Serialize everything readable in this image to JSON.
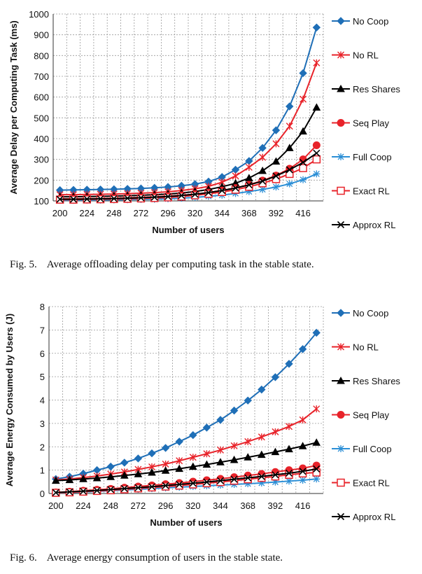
{
  "figures": [
    {
      "caption_label": "Fig. 5.",
      "caption_text": "Average offloading delay per computing task in the stable state."
    },
    {
      "caption_label": "Fig. 6.",
      "caption_text": "Average energy consumption of users in the stable state."
    }
  ],
  "chart_data": [
    {
      "type": "line",
      "title": "",
      "xlabel": "Number of users",
      "ylabel": "Average Delay per Computing Task (ms)",
      "ylim": [
        100,
        1000
      ],
      "yticks": [
        100,
        200,
        300,
        400,
        500,
        600,
        700,
        800,
        900,
        1000
      ],
      "x": [
        200,
        212,
        224,
        236,
        248,
        260,
        272,
        284,
        296,
        308,
        320,
        332,
        344,
        356,
        368,
        380,
        392,
        404,
        416,
        428
      ],
      "xtick_labels": [
        "200",
        "224",
        "248",
        "272",
        "296",
        "320",
        "344",
        "368",
        "392",
        "416"
      ],
      "grid": true,
      "legend": "right",
      "series": [
        {
          "name": "No Coop",
          "color": "#1f6fb7",
          "marker": "diamond",
          "values": [
            152,
            153,
            154,
            155,
            156,
            158,
            160,
            163,
            167,
            173,
            181,
            193,
            215,
            250,
            292,
            355,
            440,
            555,
            715,
            935
          ]
        },
        {
          "name": "No RL",
          "color": "#e8232a",
          "marker": "star",
          "values": [
            130,
            130,
            131,
            132,
            133,
            135,
            137,
            140,
            144,
            150,
            158,
            170,
            190,
            220,
            262,
            310,
            375,
            460,
            590,
            765
          ]
        },
        {
          "name": "Res Shares",
          "color": "#000000",
          "marker": "triangle",
          "values": [
            120,
            120,
            121,
            122,
            123,
            125,
            127,
            130,
            133,
            138,
            145,
            155,
            168,
            185,
            210,
            245,
            290,
            355,
            435,
            550
          ]
        },
        {
          "name": "Seq Play",
          "color": "#e8232a",
          "marker": "circle",
          "values": [
            110,
            110,
            111,
            112,
            113,
            115,
            117,
            120,
            123,
            127,
            133,
            140,
            150,
            162,
            178,
            198,
            222,
            255,
            300,
            368
          ]
        },
        {
          "name": "Full Coop",
          "color": "#2c8fd6",
          "marker": "asterisk",
          "values": [
            103,
            103,
            104,
            104,
            105,
            106,
            107,
            108,
            110,
            113,
            117,
            122,
            128,
            136,
            145,
            155,
            167,
            182,
            202,
            230
          ]
        },
        {
          "name": "Exact RL",
          "color": "#e8232a",
          "marker": "square-open",
          "values": [
            106,
            106,
            107,
            108,
            109,
            110,
            112,
            114,
            117,
            121,
            127,
            134,
            143,
            154,
            168,
            185,
            205,
            230,
            258,
            300
          ]
        },
        {
          "name": "Approx RL",
          "color": "#000000",
          "marker": "x",
          "values": [
            108,
            108,
            109,
            110,
            111,
            113,
            115,
            118,
            121,
            126,
            132,
            140,
            150,
            162,
            177,
            195,
            220,
            250,
            285,
            330
          ]
        }
      ]
    },
    {
      "type": "line",
      "title": "",
      "xlabel": "Number of users",
      "ylabel": "Average Energy Consumed by Users (J)",
      "ylim": [
        0,
        8
      ],
      "yticks": [
        0,
        1,
        2,
        3,
        4,
        5,
        6,
        7,
        8
      ],
      "x": [
        200,
        212,
        224,
        236,
        248,
        260,
        272,
        284,
        296,
        308,
        320,
        332,
        344,
        356,
        368,
        380,
        392,
        404,
        416,
        428
      ],
      "xtick_labels": [
        "200",
        "224",
        "248",
        "272",
        "296",
        "320",
        "344",
        "368",
        "392",
        "416"
      ],
      "grid": true,
      "legend": "right",
      "series": [
        {
          "name": "No Coop",
          "color": "#1f6fb7",
          "marker": "diamond",
          "values": [
            0.62,
            0.72,
            0.85,
            1.0,
            1.15,
            1.32,
            1.5,
            1.72,
            1.95,
            2.22,
            2.5,
            2.82,
            3.15,
            3.55,
            3.98,
            4.45,
            4.98,
            5.55,
            6.18,
            6.88
          ]
        },
        {
          "name": "No RL",
          "color": "#e8232a",
          "marker": "star",
          "values": [
            0.58,
            0.62,
            0.68,
            0.75,
            0.83,
            0.92,
            1.03,
            1.14,
            1.26,
            1.4,
            1.55,
            1.7,
            1.86,
            2.04,
            2.22,
            2.42,
            2.64,
            2.87,
            3.15,
            3.62
          ]
        },
        {
          "name": "Res Shares",
          "color": "#000000",
          "marker": "triangle",
          "values": [
            0.55,
            0.58,
            0.62,
            0.66,
            0.71,
            0.77,
            0.83,
            0.9,
            0.98,
            1.06,
            1.15,
            1.24,
            1.34,
            1.44,
            1.55,
            1.66,
            1.78,
            1.9,
            2.03,
            2.18
          ]
        },
        {
          "name": "Seq Play",
          "color": "#e8232a",
          "marker": "circle",
          "values": [
            0.05,
            0.08,
            0.12,
            0.16,
            0.2,
            0.25,
            0.3,
            0.35,
            0.4,
            0.45,
            0.51,
            0.57,
            0.63,
            0.7,
            0.77,
            0.84,
            0.92,
            1.0,
            1.08,
            1.2
          ]
        },
        {
          "name": "Full Coop",
          "color": "#2c8fd6",
          "marker": "asterisk",
          "values": [
            0.02,
            0.04,
            0.06,
            0.09,
            0.12,
            0.15,
            0.18,
            0.21,
            0.24,
            0.27,
            0.3,
            0.33,
            0.36,
            0.39,
            0.42,
            0.45,
            0.49,
            0.53,
            0.57,
            0.62
          ]
        },
        {
          "name": "Exact RL",
          "color": "#e8232a",
          "marker": "square-open",
          "values": [
            0.03,
            0.05,
            0.08,
            0.11,
            0.14,
            0.18,
            0.22,
            0.26,
            0.3,
            0.34,
            0.39,
            0.44,
            0.49,
            0.55,
            0.61,
            0.67,
            0.73,
            0.8,
            0.86,
            0.9
          ]
        },
        {
          "name": "Approx RL",
          "color": "#000000",
          "marker": "x",
          "values": [
            0.04,
            0.07,
            0.1,
            0.13,
            0.17,
            0.21,
            0.25,
            0.29,
            0.34,
            0.39,
            0.44,
            0.49,
            0.55,
            0.61,
            0.67,
            0.73,
            0.8,
            0.87,
            0.95,
            1.05
          ]
        }
      ]
    }
  ]
}
